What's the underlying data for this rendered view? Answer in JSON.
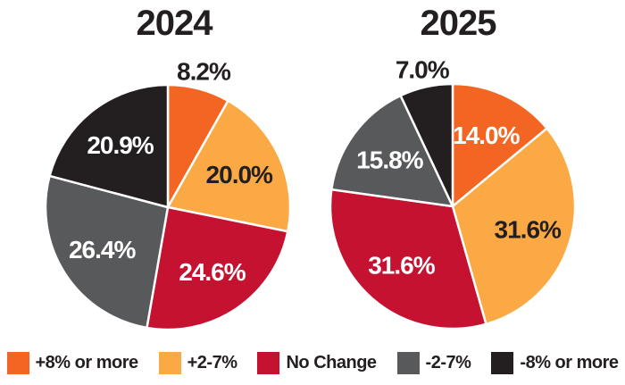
{
  "chart_data": [
    {
      "type": "pie",
      "title": "2024",
      "start_angle_deg": 0,
      "direction": "clockwise",
      "slices": [
        {
          "name": "+8% or more",
          "value": 8.2,
          "label": "8.2%",
          "color": "#F26522",
          "label_color": "#231F20",
          "label_placement": "outside"
        },
        {
          "name": "+2-7%",
          "value": 20.0,
          "label": "20.0%",
          "color": "#FAA945",
          "label_color": "#231F20",
          "label_placement": "inside"
        },
        {
          "name": "No Change",
          "value": 24.6,
          "label": "24.6%",
          "color": "#C41230",
          "label_color": "#FFFFFF",
          "label_placement": "inside"
        },
        {
          "name": "-2-7%",
          "value": 26.4,
          "label": "26.4%",
          "color": "#58595B",
          "label_color": "#FFFFFF",
          "label_placement": "inside"
        },
        {
          "name": "-8% or more",
          "value": 20.9,
          "label": "20.9%",
          "color": "#231F20",
          "label_color": "#FFFFFF",
          "label_placement": "inside"
        }
      ]
    },
    {
      "type": "pie",
      "title": "2025",
      "start_angle_deg": 0,
      "direction": "clockwise",
      "slices": [
        {
          "name": "+8% or more",
          "value": 14.0,
          "label": "14.0%",
          "color": "#F26522",
          "label_color": "#FFFFFF",
          "label_placement": "inside"
        },
        {
          "name": "+2-7%",
          "value": 31.6,
          "label": "31.6%",
          "color": "#FAA945",
          "label_color": "#231F20",
          "label_placement": "inside"
        },
        {
          "name": "No Change",
          "value": 31.6,
          "label": "31.6%",
          "color": "#C41230",
          "label_color": "#FFFFFF",
          "label_placement": "inside"
        },
        {
          "name": "-2-7%",
          "value": 15.8,
          "label": "15.8%",
          "color": "#58595B",
          "label_color": "#FFFFFF",
          "label_placement": "inside"
        },
        {
          "name": "-8% or more",
          "value": 7.0,
          "label": "7.0%",
          "color": "#231F20",
          "label_color": "#231F20",
          "label_placement": "outside"
        }
      ]
    }
  ],
  "legend": {
    "items": [
      {
        "label": "+8% or more",
        "color": "#F26522"
      },
      {
        "label": "+2-7%",
        "color": "#FAA945"
      },
      {
        "label": "No Change",
        "color": "#C41230"
      },
      {
        "label": "-2-7%",
        "color": "#58595B"
      },
      {
        "label": "-8% or more",
        "color": "#231F20"
      }
    ]
  },
  "colors": {
    "background": "#FFFFFF",
    "text": "#231F20",
    "slice_separator": "#FFFFFF"
  }
}
